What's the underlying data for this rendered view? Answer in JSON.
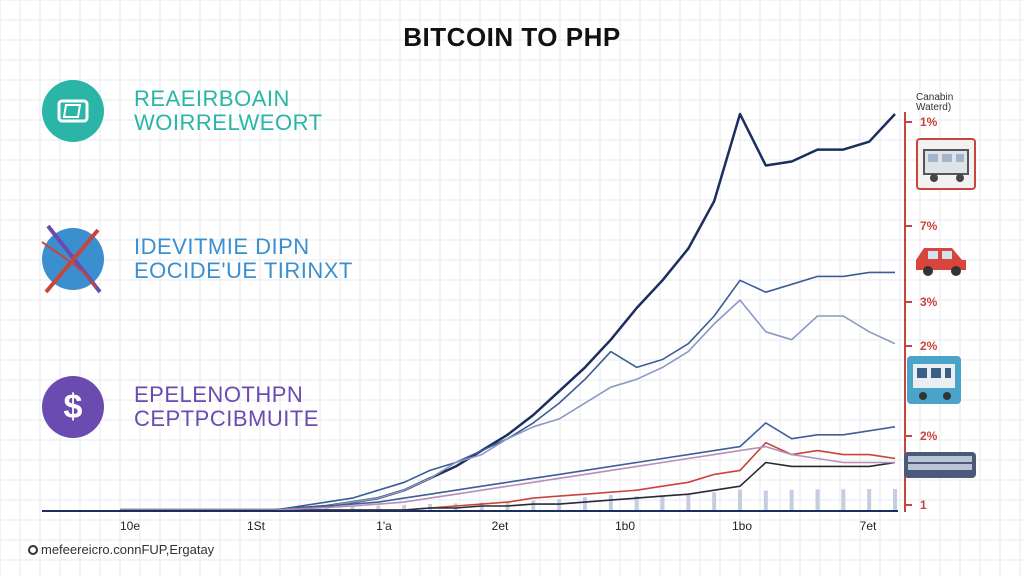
{
  "title": "BITCOIN TO PHP",
  "legend": [
    {
      "line1": "REAEIRBOAIN",
      "line2": "WOIRRELWEORT",
      "color": "#2bb5a6",
      "icon": "wallet-icon"
    },
    {
      "line1": "IDEVITMIE DIPN",
      "line2": "EOCIDE'UE TIRINXT",
      "color": "#3b8fce",
      "icon": "crossed-arrows-icon"
    },
    {
      "line1": "EPELENOTHPN",
      "line2": "CEPTPCIBMUITE",
      "color": "#6a4bb0",
      "icon": "dollar-icon"
    }
  ],
  "side_panel": {
    "header_line1": "Canabin",
    "header_line2": "Waterd)",
    "tick_labels": [
      "1%",
      "7%",
      "3%",
      "2%",
      "2%",
      "1"
    ]
  },
  "footer": "mefeereicro.connFUP,Ergatay",
  "chart_data": {
    "type": "line",
    "title": "BITCOIN TO PHP",
    "xlabel": "",
    "ylabel": "",
    "x_tick_labels": [
      "10e",
      "1St",
      "1'a",
      "2et",
      "1b0",
      "1bo",
      "7et"
    ],
    "x": [
      0,
      1,
      2,
      3,
      4,
      5,
      6,
      7,
      8,
      9,
      10,
      11,
      12,
      13,
      14,
      15,
      16,
      17,
      18,
      19,
      20,
      21,
      22,
      23,
      24,
      25,
      26,
      27,
      28,
      29,
      30
    ],
    "ylim": [
      0,
      100
    ],
    "grid": true,
    "series": [
      {
        "color": "#1c2e5e",
        "values": [
          0,
          0,
          0,
          0,
          0,
          0,
          0,
          0.5,
          1,
          2,
          3,
          5,
          8,
          11,
          15,
          19,
          24,
          30,
          36,
          43,
          51,
          58,
          66,
          78,
          100,
          87,
          88,
          91,
          91,
          93,
          100
        ]
      },
      {
        "color": "#3a5d96",
        "values": [
          0,
          0,
          0,
          0,
          0,
          0,
          0,
          1,
          2,
          3,
          5,
          7,
          10,
          12,
          15,
          18,
          22,
          27,
          33,
          40,
          36,
          38,
          42,
          49,
          58,
          55,
          57,
          59,
          59,
          60,
          60
        ]
      },
      {
        "color": "#8e99c3",
        "values": [
          0,
          0,
          0,
          0,
          0,
          0,
          0,
          0.5,
          1,
          2,
          3,
          5,
          8,
          12,
          14,
          18,
          21,
          23,
          27,
          31,
          33,
          36,
          40,
          47,
          53,
          45,
          43,
          49,
          49,
          45,
          42
        ]
      },
      {
        "color": "#3f5f9a",
        "values": [
          0,
          0,
          0,
          0,
          0,
          0,
          0,
          0.5,
          1,
          1.5,
          2,
          3,
          4,
          5,
          6,
          7,
          8,
          9,
          10,
          11,
          12,
          13,
          14,
          15,
          16,
          22,
          18,
          19,
          19,
          20,
          21
        ]
      },
      {
        "color": "#c8453d",
        "values": [
          0,
          0,
          0,
          0,
          0,
          0,
          0,
          0,
          0,
          0,
          0,
          0,
          0.5,
          1,
          1.5,
          2,
          3,
          3.5,
          4,
          4.5,
          5,
          6,
          7,
          9,
          10,
          17,
          14,
          15,
          14,
          14,
          13
        ]
      },
      {
        "color": "#2a2a36",
        "values": [
          0,
          0,
          0,
          0,
          0,
          0,
          0,
          0,
          0,
          0,
          0,
          0,
          0.5,
          0.5,
          1,
          1,
          1.5,
          1.5,
          2,
          2.5,
          3,
          3.5,
          4,
          5,
          6,
          12,
          11,
          11,
          11,
          11,
          12
        ]
      },
      {
        "color": "#b58fb8",
        "values": [
          0,
          0,
          0,
          0,
          0,
          0,
          0,
          0.3,
          0.6,
          1,
          1.5,
          2,
          3,
          4,
          5,
          6,
          7,
          8,
          9,
          10,
          11,
          12,
          13,
          14,
          15,
          16,
          14,
          13,
          12,
          12,
          12
        ]
      }
    ]
  }
}
